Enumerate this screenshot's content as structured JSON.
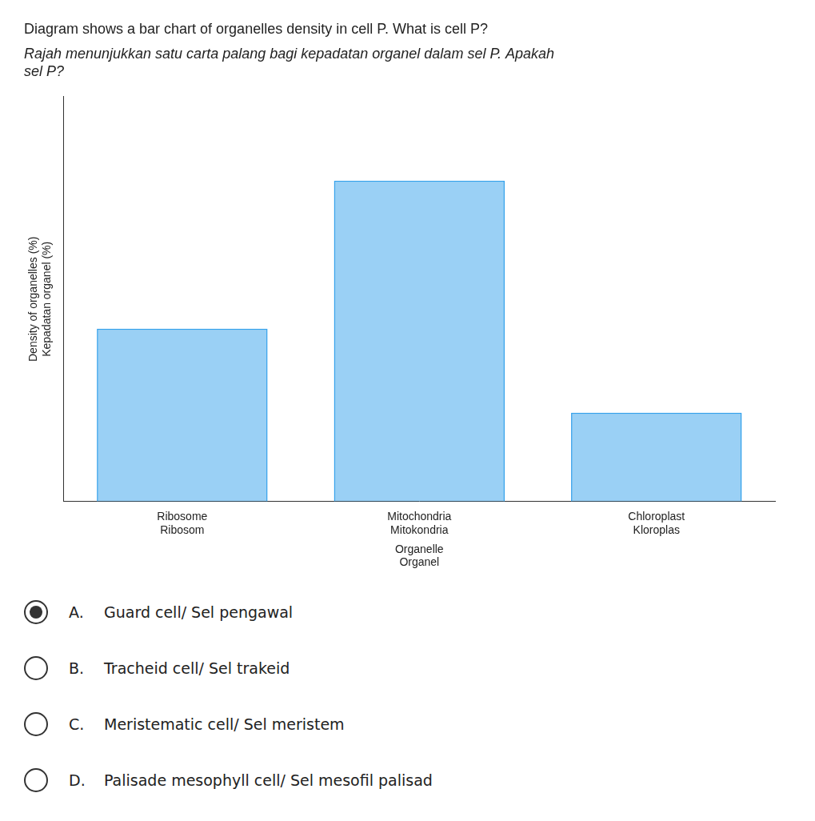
{
  "chart_data": {
    "type": "bar",
    "title": "Diagram shows a bar chart of organelles density in cell P. What is cell P?",
    "subtitle": [
      "Rajah menunjukkan satu carta palang bagi kepadatan organel dalam sel P. Apakah",
      "sel P?"
    ],
    "y_label": [
      "Density of organelles (%)",
      "Kepadatan organel (%)"
    ],
    "x_label": [
      "Organelle",
      "Organel"
    ],
    "categories": [
      [
        "Ribosome",
        "Ribosom"
      ],
      [
        "Mitochondria",
        "Mitokondria"
      ],
      [
        "Chloroplast",
        "Kloroplas"
      ]
    ],
    "values": [
      35,
      65,
      18
    ],
    "ylim": [
      0,
      82
    ],
    "grid": false,
    "tick_labels": "x",
    "annotations": [
      {
        "letter": "A.",
        "text": "Guard cell/ Sel pengawal",
        "selected": true
      },
      {
        "letter": "B.",
        "text": "Tracheid cell/ Sel trakeid",
        "selected": false
      },
      {
        "letter": "C.",
        "text": "Meristematic cell/ Sel meristem",
        "selected": false
      },
      {
        "letter": "D.",
        "text": "Palisade mesophyll cell/ Sel mesofil palisad",
        "selected": false
      }
    ]
  }
}
